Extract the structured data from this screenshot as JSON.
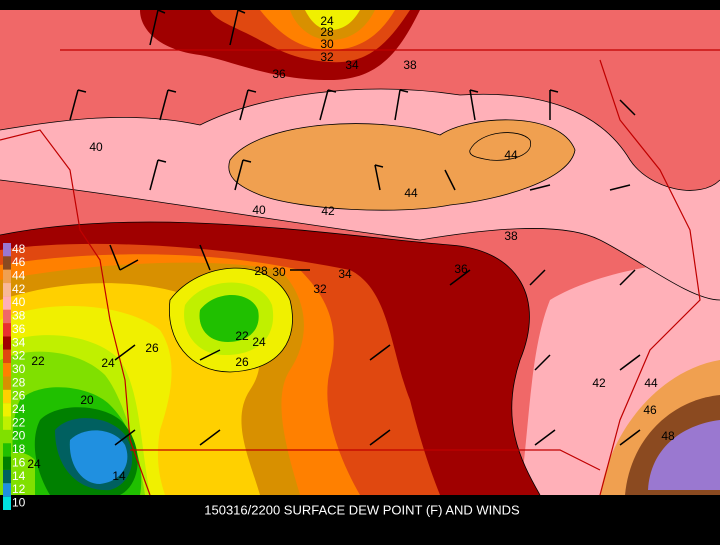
{
  "title": "150316/2200 SURFACE DEW POINT (F) AND WINDS",
  "legend": {
    "labels": [
      "48",
      "46",
      "44",
      "42",
      "40",
      "38",
      "36",
      "34",
      "32",
      "30",
      "28",
      "26",
      "24",
      "22",
      "20",
      "18",
      "16",
      "14",
      "12",
      "10"
    ],
    "colors": [
      "#9a78d0",
      "#8b4a20",
      "#f0a050",
      "#f8b898",
      "#ffb0b8",
      "#f06868",
      "#e83030",
      "#a00000",
      "#e04810",
      "#ff8000",
      "#d89000",
      "#ffd000",
      "#f0f000",
      "#c0f000",
      "#80e000",
      "#20c000",
      "#008000",
      "#006060",
      "#2090e0",
      "#00e0e0"
    ]
  },
  "contour_labels": [
    "24",
    "28",
    "30",
    "32",
    "34",
    "36",
    "38",
    "40",
    "44",
    "44",
    "42",
    "40",
    "38",
    "36",
    "34",
    "28",
    "30",
    "32",
    "22",
    "24",
    "26",
    "26",
    "24",
    "22",
    "20",
    "24",
    "14",
    "42",
    "44",
    "46",
    "48"
  ]
}
